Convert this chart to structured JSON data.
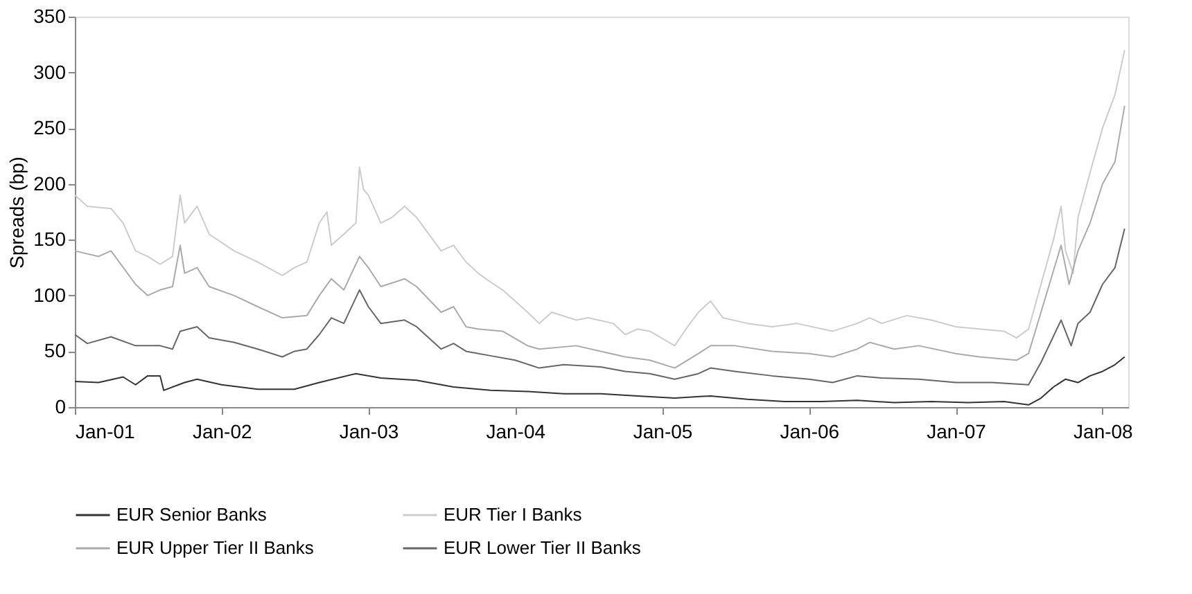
{
  "chart_data": {
    "type": "line",
    "ylabel": "Spreads (bp)",
    "xlim": [
      "2001-01-01",
      "2008-03-05"
    ],
    "xticks": [
      {
        "value": "2001-01",
        "label": "Jan-01"
      },
      {
        "value": "2002-01",
        "label": "Jan-02"
      },
      {
        "value": "2003-01",
        "label": "Jan-03"
      },
      {
        "value": "2004-01",
        "label": "Jan-04"
      },
      {
        "value": "2005-01",
        "label": "Jan-05"
      },
      {
        "value": "2006-01",
        "label": "Jan-06"
      },
      {
        "value": "2007-01",
        "label": "Jan-07"
      },
      {
        "value": "2008-01",
        "label": "Jan-08"
      }
    ],
    "ylim": [
      0,
      350
    ],
    "yticks": [
      0,
      50,
      100,
      150,
      200,
      250,
      300,
      350
    ],
    "grid": false,
    "legend": "bottom",
    "line_style": "solid",
    "marker": "none",
    "series": [
      {
        "name": "EUR Senior Banks",
        "color": "#333333",
        "x": [
          "2001-01",
          "2001-03",
          "2001-05",
          "2001-06",
          "2001-07",
          "2001-08",
          "2001-08-10",
          "2001-10",
          "2001-11",
          "2002-01",
          "2002-04",
          "2002-07",
          "2002-09",
          "2002-12",
          "2003-02",
          "2003-05",
          "2003-08",
          "2003-11",
          "2004-02",
          "2004-05",
          "2004-08",
          "2004-11",
          "2005-02",
          "2005-05",
          "2005-08",
          "2005-11",
          "2006-02",
          "2006-05",
          "2006-08",
          "2006-11",
          "2007-02",
          "2007-05",
          "2007-07",
          "2007-08",
          "2007-09",
          "2007-10",
          "2007-11",
          "2007-12",
          "2008-01",
          "2008-02",
          "2008-02-25"
        ],
        "values": [
          23,
          22,
          27,
          20,
          28,
          28,
          15,
          22,
          25,
          20,
          16,
          16,
          22,
          30,
          26,
          24,
          18,
          15,
          14,
          12,
          12,
          10,
          8,
          10,
          7,
          5,
          5,
          6,
          4,
          5,
          4,
          5,
          2,
          8,
          18,
          25,
          22,
          28,
          32,
          38,
          45
        ]
      },
      {
        "name": "EUR Tier I Banks",
        "color": "#cccccc",
        "x": [
          "2001-01",
          "2001-02",
          "2001-04",
          "2001-05",
          "2001-06",
          "2001-07",
          "2001-08",
          "2001-09",
          "2001-09-20",
          "2001-10",
          "2001-11",
          "2001-12",
          "2002-02",
          "2002-04",
          "2002-06",
          "2002-07",
          "2002-08",
          "2002-09",
          "2002-09-20",
          "2002-10",
          "2002-11",
          "2002-12",
          "2002-12-10",
          "2002-12-20",
          "2003-01",
          "2003-02",
          "2003-03",
          "2003-04",
          "2003-05",
          "2003-07",
          "2003-08",
          "2003-09",
          "2003-10",
          "2003-11",
          "2003-12",
          "2004-02",
          "2004-03",
          "2004-04",
          "2004-06",
          "2004-07",
          "2004-09",
          "2004-10",
          "2004-11",
          "2004-12",
          "2005-02",
          "2005-03",
          "2005-04",
          "2005-05",
          "2005-06",
          "2005-08",
          "2005-10",
          "2005-12",
          "2006-03",
          "2006-05",
          "2006-06",
          "2006-07",
          "2006-09",
          "2006-11",
          "2007-01",
          "2007-03",
          "2007-05",
          "2007-06",
          "2007-07",
          "2007-08",
          "2007-09",
          "2007-09-20",
          "2007-10",
          "2007-10-20",
          "2007-11",
          "2007-12",
          "2008-01",
          "2008-02",
          "2008-02-25"
        ],
        "values": [
          190,
          180,
          178,
          165,
          140,
          135,
          128,
          135,
          190,
          165,
          180,
          155,
          140,
          130,
          118,
          125,
          130,
          165,
          175,
          145,
          155,
          165,
          215,
          195,
          190,
          165,
          170,
          180,
          170,
          140,
          145,
          130,
          120,
          112,
          105,
          85,
          75,
          85,
          78,
          80,
          75,
          65,
          70,
          68,
          55,
          70,
          85,
          95,
          80,
          75,
          72,
          75,
          68,
          75,
          80,
          75,
          82,
          78,
          72,
          70,
          68,
          62,
          70,
          110,
          150,
          180,
          140,
          120,
          170,
          210,
          250,
          280,
          320
        ]
      },
      {
        "name": "EUR Upper Tier II Banks",
        "color": "#aaaaaa",
        "x": [
          "2001-01",
          "2001-03",
          "2001-04",
          "2001-06",
          "2001-07",
          "2001-08",
          "2001-09",
          "2001-09-20",
          "2001-10",
          "2001-11",
          "2001-12",
          "2002-02",
          "2002-04",
          "2002-06",
          "2002-08",
          "2002-09",
          "2002-10",
          "2002-11",
          "2002-12-10",
          "2003-01",
          "2003-02",
          "2003-04",
          "2003-05",
          "2003-07",
          "2003-08",
          "2003-09",
          "2003-10",
          "2003-12",
          "2004-02",
          "2004-03",
          "2004-06",
          "2004-08",
          "2004-10",
          "2004-12",
          "2005-02",
          "2005-04",
          "2005-05",
          "2005-07",
          "2005-10",
          "2006-01",
          "2006-03",
          "2006-05",
          "2006-06",
          "2006-08",
          "2006-10",
          "2007-01",
          "2007-03",
          "2007-06",
          "2007-07",
          "2007-08",
          "2007-09-20",
          "2007-10-10",
          "2007-11",
          "2007-12",
          "2008-01",
          "2008-02",
          "2008-02-25"
        ],
        "values": [
          140,
          135,
          140,
          110,
          100,
          105,
          108,
          145,
          120,
          125,
          108,
          100,
          90,
          80,
          82,
          100,
          115,
          105,
          135,
          125,
          108,
          115,
          108,
          85,
          90,
          72,
          70,
          68,
          55,
          52,
          55,
          50,
          45,
          42,
          35,
          48,
          55,
          55,
          50,
          48,
          45,
          52,
          58,
          52,
          55,
          48,
          45,
          42,
          48,
          85,
          145,
          110,
          140,
          165,
          200,
          220,
          270
        ]
      },
      {
        "name": "EUR Lower Tier II Banks",
        "color": "#666666",
        "x": [
          "2001-01",
          "2001-02",
          "2001-04",
          "2001-06",
          "2001-08",
          "2001-09",
          "2001-09-20",
          "2001-11",
          "2001-12",
          "2002-02",
          "2002-04",
          "2002-06",
          "2002-07",
          "2002-08",
          "2002-09",
          "2002-10",
          "2002-11",
          "2002-12-10",
          "2003-01",
          "2003-02",
          "2003-04",
          "2003-05",
          "2003-07",
          "2003-08",
          "2003-09",
          "2003-11",
          "2004-01",
          "2004-03",
          "2004-05",
          "2004-08",
          "2004-10",
          "2004-12",
          "2005-02",
          "2005-04",
          "2005-05",
          "2005-07",
          "2005-10",
          "2006-01",
          "2006-03",
          "2006-05",
          "2006-07",
          "2006-10",
          "2007-01",
          "2007-04",
          "2007-07",
          "2007-08",
          "2007-09-20",
          "2007-10-15",
          "2007-11",
          "2007-12",
          "2008-01",
          "2008-02",
          "2008-02-25"
        ],
        "values": [
          65,
          57,
          63,
          55,
          55,
          52,
          68,
          72,
          62,
          58,
          52,
          45,
          50,
          52,
          65,
          80,
          75,
          105,
          90,
          75,
          78,
          72,
          52,
          57,
          50,
          46,
          42,
          35,
          38,
          36,
          32,
          30,
          25,
          30,
          35,
          32,
          28,
          25,
          22,
          28,
          26,
          25,
          22,
          22,
          20,
          40,
          78,
          55,
          75,
          85,
          110,
          125,
          160
        ]
      }
    ]
  }
}
